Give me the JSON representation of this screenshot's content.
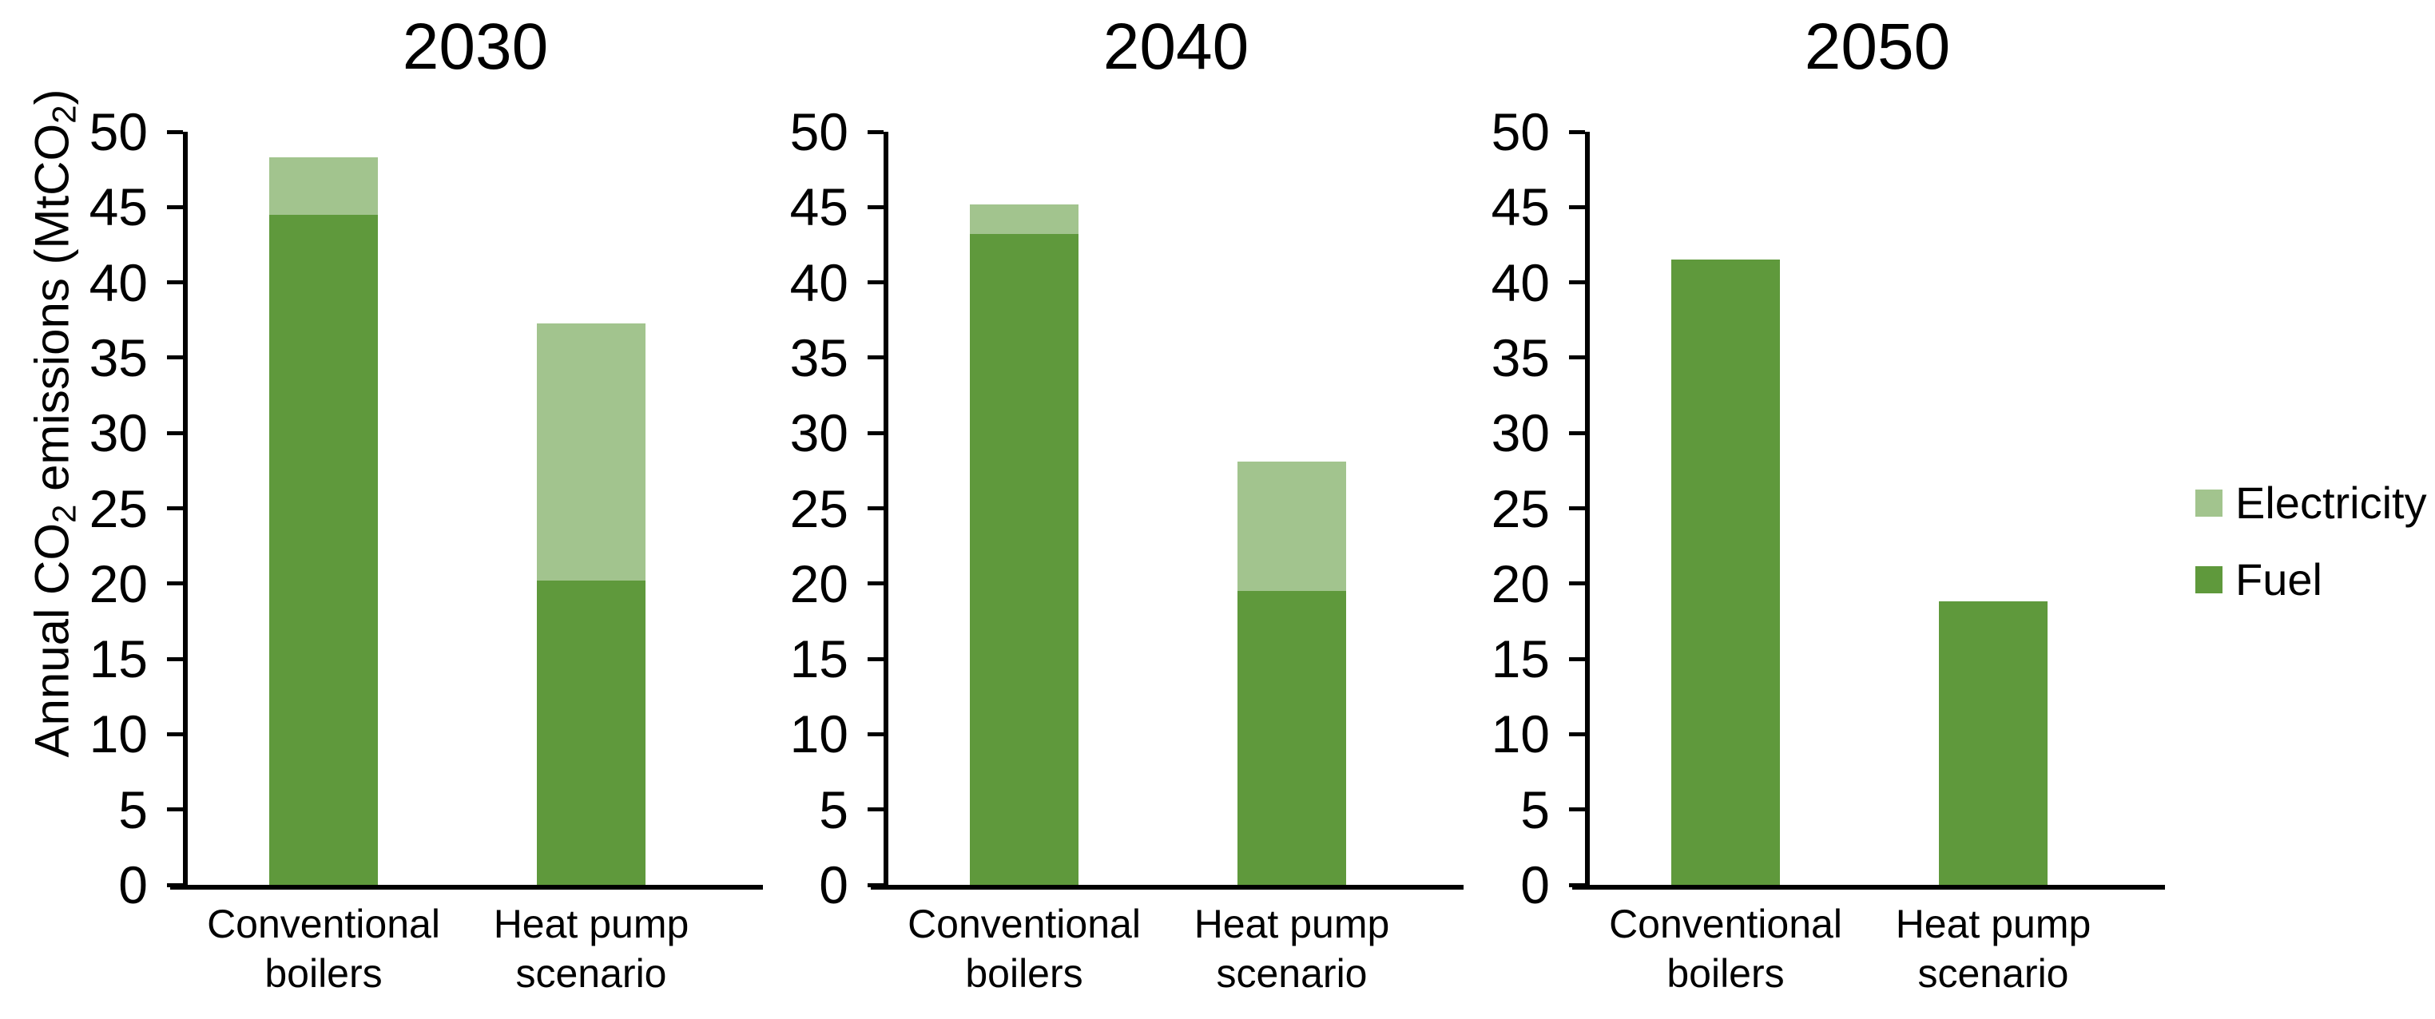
{
  "chart_data": [
    {
      "type": "bar",
      "stacked": true,
      "title": "2030",
      "categories": [
        "Conventional boilers",
        "Heat pump scenario"
      ],
      "categories_wrapped": [
        [
          "Conventional",
          "boilers"
        ],
        [
          "Heat pump",
          "scenario"
        ]
      ],
      "series": [
        {
          "name": "Fuel",
          "color": "#5f993c",
          "values": [
            44.5,
            20.2
          ]
        },
        {
          "name": "Electricity",
          "color": "#a2c48e",
          "values": [
            3.8,
            17.1
          ]
        }
      ],
      "totals": [
        48.3,
        37.3
      ],
      "xlabel": "",
      "ylabel": "Annual CO2 emissions (MtCO2)",
      "ylim": [
        0,
        50
      ],
      "yticks": [
        0,
        5,
        10,
        15,
        20,
        25,
        30,
        35,
        40,
        45,
        50
      ],
      "grid": false,
      "legend_position": "right"
    },
    {
      "type": "bar",
      "stacked": true,
      "title": "2040",
      "categories": [
        "Conventional boilers",
        "Heat pump scenario"
      ],
      "categories_wrapped": [
        [
          "Conventional",
          "boilers"
        ],
        [
          "Heat pump",
          "scenario"
        ]
      ],
      "series": [
        {
          "name": "Fuel",
          "color": "#5f993c",
          "values": [
            43.2,
            19.5
          ]
        },
        {
          "name": "Electricity",
          "color": "#a2c48e",
          "values": [
            2.0,
            8.6
          ]
        }
      ],
      "totals": [
        45.2,
        28.1
      ],
      "xlabel": "",
      "ylabel": "Annual CO2 emissions (MtCO2)",
      "ylim": [
        0,
        50
      ],
      "yticks": [
        0,
        5,
        10,
        15,
        20,
        25,
        30,
        35,
        40,
        45,
        50
      ],
      "grid": false,
      "legend_position": "right"
    },
    {
      "type": "bar",
      "stacked": true,
      "title": "2050",
      "categories": [
        "Conventional boilers",
        "Heat pump scenario"
      ],
      "categories_wrapped": [
        [
          "Conventional",
          "boilers"
        ],
        [
          "Heat pump",
          "scenario"
        ]
      ],
      "series": [
        {
          "name": "Fuel",
          "color": "#5f993c",
          "values": [
            41.5,
            18.8
          ]
        },
        {
          "name": "Electricity",
          "color": "#a2c48e",
          "values": [
            0,
            0
          ]
        }
      ],
      "totals": [
        41.5,
        18.8
      ],
      "xlabel": "",
      "ylabel": "Annual CO2 emissions (MtCO2)",
      "ylim": [
        0,
        50
      ],
      "yticks": [
        0,
        5,
        10,
        15,
        20,
        25,
        30,
        35,
        40,
        45,
        50
      ],
      "grid": false,
      "legend_position": "right"
    }
  ],
  "ylabel": {
    "parts": [
      "Annual CO",
      "2",
      " emissions (MtCO",
      "2",
      ")"
    ]
  },
  "legend": {
    "items": [
      {
        "label": "Electricity",
        "color": "#a2c48e"
      },
      {
        "label": "Fuel",
        "color": "#5f993c"
      }
    ]
  },
  "colors": {
    "fuel": "#5f993c",
    "electricity": "#a2c48e",
    "axis": "#000000",
    "background": "#ffffff"
  }
}
